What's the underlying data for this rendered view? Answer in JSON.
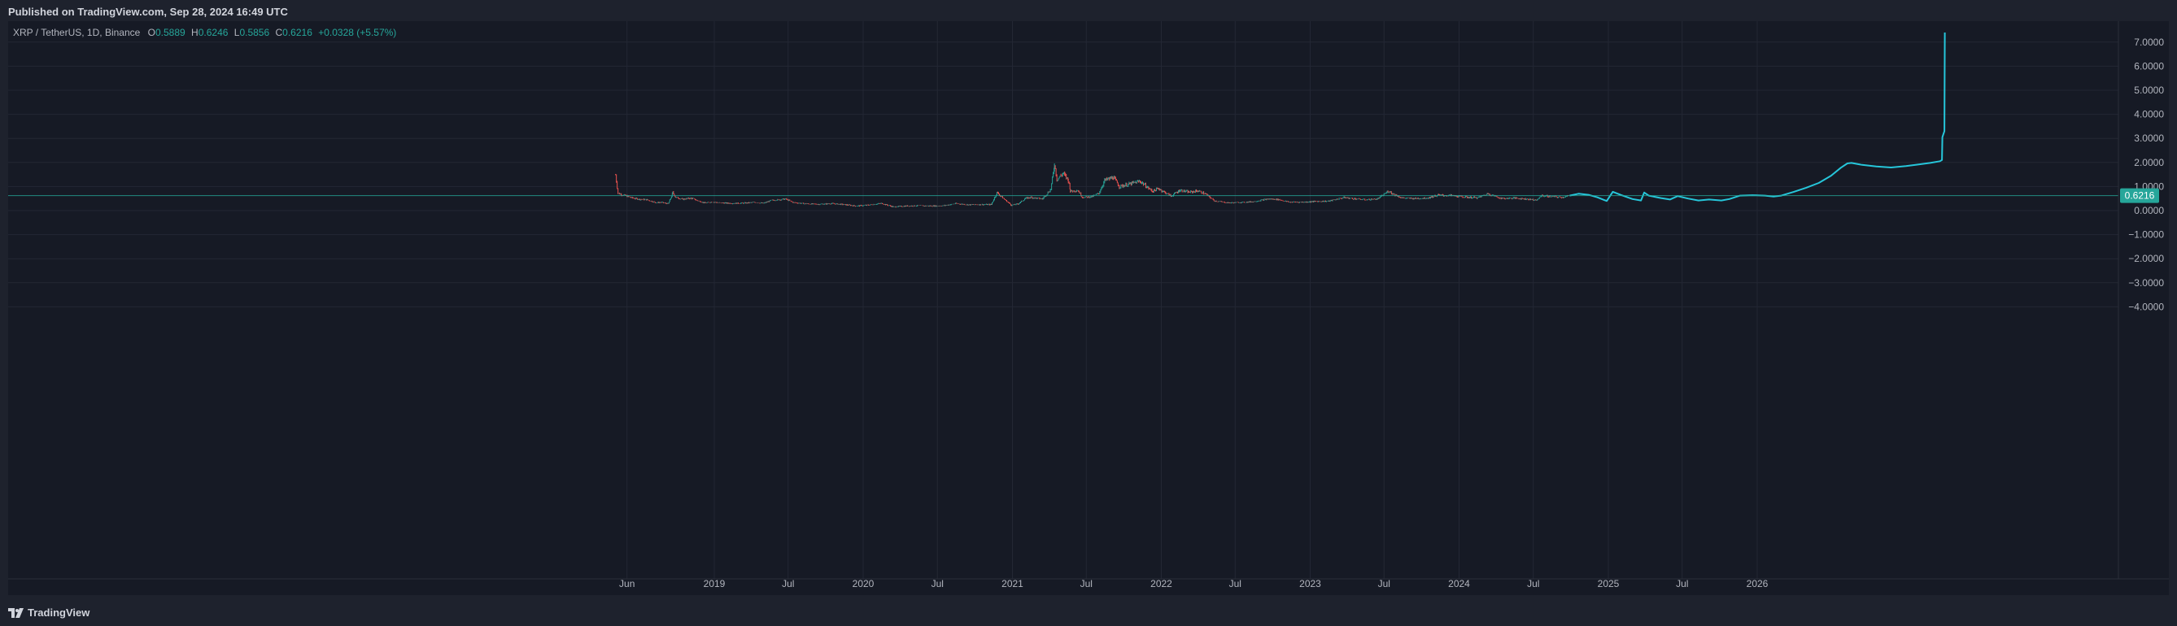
{
  "header": {
    "published": "Published on TradingView.com, Sep 28, 2024 16:49 UTC"
  },
  "legend": {
    "symbol": "XRP / TetherUS, 1D, Binance",
    "o_label": "O",
    "o_value": "0.5889",
    "h_label": "H",
    "h_value": "0.6246",
    "l_label": "L",
    "l_value": "0.5856",
    "c_label": "C",
    "c_value": "0.6216",
    "change": "+0.0328 (+5.57%)"
  },
  "footer": {
    "brand": "TradingView",
    "logo_icon": "tradingview-logo-icon"
  },
  "colors": {
    "background": "#161a25",
    "grid": "#232734",
    "axis_text": "#b2b5be",
    "up": "#26a69a",
    "down": "#ef5350",
    "projection": "#26c6da",
    "price_line": "#26a69a"
  },
  "chart_data": {
    "type": "line",
    "symbol": "XRP / TetherUS",
    "interval": "1D",
    "exchange": "Binance",
    "ylim": [
      -5.2,
      7.3
    ],
    "y_ticks": [
      7,
      6,
      5,
      4,
      3,
      2,
      1,
      0,
      -1,
      -2,
      -3,
      -4
    ],
    "y_tick_labels": [
      "7.0000",
      "6.0000",
      "5.0000",
      "4.0000",
      "3.0000",
      "2.0000",
      "1.0000",
      "0.0000",
      "−1.0000",
      "−2.0000",
      "−3.0000",
      "−4.0000"
    ],
    "x_tick_labels": [
      "Jun",
      "2019",
      "Jul",
      "2020",
      "Jul",
      "2021",
      "Jul",
      "2022",
      "Jul",
      "2023",
      "Jul",
      "2024",
      "Jul",
      "2025",
      "Jul",
      "2026"
    ],
    "x_tick_dates": [
      "2018-06-01",
      "2019-01-01",
      "2019-07-01",
      "2020-01-01",
      "2020-07-01",
      "2021-01-01",
      "2021-07-01",
      "2022-01-01",
      "2022-07-01",
      "2023-01-01",
      "2023-07-01",
      "2024-01-01",
      "2024-07-01",
      "2025-01-01",
      "2025-07-01",
      "2026-01-01"
    ],
    "last_price": 0.6216,
    "last_price_label": "0.6216",
    "grid": true,
    "series": [
      {
        "kind": "candles",
        "points": [
          [
            "2018-05-04",
            1.48
          ],
          [
            "2018-05-10",
            0.72
          ],
          [
            "2018-05-20",
            0.66
          ],
          [
            "2018-06-01",
            0.6
          ],
          [
            "2018-06-15",
            0.52
          ],
          [
            "2018-07-01",
            0.47
          ],
          [
            "2018-07-20",
            0.45
          ],
          [
            "2018-08-10",
            0.33
          ],
          [
            "2018-08-25",
            0.34
          ],
          [
            "2018-09-10",
            0.28
          ],
          [
            "2018-09-21",
            0.75
          ],
          [
            "2018-09-28",
            0.55
          ],
          [
            "2018-10-15",
            0.47
          ],
          [
            "2018-11-05",
            0.52
          ],
          [
            "2018-11-20",
            0.42
          ],
          [
            "2018-12-10",
            0.31
          ],
          [
            "2018-12-25",
            0.36
          ],
          [
            "2019-01-15",
            0.32
          ],
          [
            "2019-02-15",
            0.3
          ],
          [
            "2019-03-15",
            0.31
          ],
          [
            "2019-04-10",
            0.34
          ],
          [
            "2019-05-01",
            0.3
          ],
          [
            "2019-05-20",
            0.42
          ],
          [
            "2019-06-25",
            0.48
          ],
          [
            "2019-07-15",
            0.33
          ],
          [
            "2019-08-15",
            0.28
          ],
          [
            "2019-09-15",
            0.26
          ],
          [
            "2019-10-15",
            0.29
          ],
          [
            "2019-11-15",
            0.25
          ],
          [
            "2019-12-15",
            0.19
          ],
          [
            "2020-01-15",
            0.23
          ],
          [
            "2020-02-15",
            0.3
          ],
          [
            "2020-03-15",
            0.15
          ],
          [
            "2020-04-15",
            0.19
          ],
          [
            "2020-05-15",
            0.2
          ],
          [
            "2020-06-15",
            0.19
          ],
          [
            "2020-07-15",
            0.2
          ],
          [
            "2020-08-15",
            0.29
          ],
          [
            "2020-09-15",
            0.24
          ],
          [
            "2020-10-15",
            0.25
          ],
          [
            "2020-11-10",
            0.25
          ],
          [
            "2020-11-24",
            0.75
          ],
          [
            "2020-12-10",
            0.5
          ],
          [
            "2020-12-29",
            0.22
          ],
          [
            "2021-01-15",
            0.28
          ],
          [
            "2021-02-01",
            0.5
          ],
          [
            "2021-02-15",
            0.55
          ],
          [
            "2021-03-15",
            0.48
          ],
          [
            "2021-04-05",
            0.9
          ],
          [
            "2021-04-14",
            1.96
          ],
          [
            "2021-04-20",
            1.3
          ],
          [
            "2021-05-05",
            1.55
          ],
          [
            "2021-05-18",
            1.25
          ],
          [
            "2021-05-23",
            0.8
          ],
          [
            "2021-06-10",
            0.85
          ],
          [
            "2021-06-22",
            0.55
          ],
          [
            "2021-07-15",
            0.58
          ],
          [
            "2021-08-01",
            0.72
          ],
          [
            "2021-08-15",
            1.25
          ],
          [
            "2021-09-05",
            1.38
          ],
          [
            "2021-09-20",
            1.0
          ],
          [
            "2021-10-15",
            1.1
          ],
          [
            "2021-11-10",
            1.22
          ],
          [
            "2021-11-25",
            1.0
          ],
          [
            "2021-12-10",
            0.8
          ],
          [
            "2021-12-25",
            0.92
          ],
          [
            "2022-01-10",
            0.75
          ],
          [
            "2022-01-25",
            0.6
          ],
          [
            "2022-02-15",
            0.85
          ],
          [
            "2022-03-10",
            0.76
          ],
          [
            "2022-04-01",
            0.82
          ],
          [
            "2022-04-20",
            0.68
          ],
          [
            "2022-05-12",
            0.4
          ],
          [
            "2022-06-15",
            0.32
          ],
          [
            "2022-07-15",
            0.34
          ],
          [
            "2022-08-15",
            0.37
          ],
          [
            "2022-09-20",
            0.48
          ],
          [
            "2022-10-15",
            0.46
          ],
          [
            "2022-11-10",
            0.35
          ],
          [
            "2022-12-15",
            0.35
          ],
          [
            "2023-01-15",
            0.38
          ],
          [
            "2023-02-15",
            0.39
          ],
          [
            "2023-03-25",
            0.54
          ],
          [
            "2023-04-15",
            0.5
          ],
          [
            "2023-05-15",
            0.45
          ],
          [
            "2023-06-15",
            0.48
          ],
          [
            "2023-07-13",
            0.82
          ],
          [
            "2023-07-20",
            0.72
          ],
          [
            "2023-08-15",
            0.52
          ],
          [
            "2023-09-15",
            0.5
          ],
          [
            "2023-10-15",
            0.52
          ],
          [
            "2023-11-10",
            0.64
          ],
          [
            "2023-12-15",
            0.62
          ],
          [
            "2024-01-15",
            0.56
          ],
          [
            "2024-02-15",
            0.53
          ],
          [
            "2024-03-12",
            0.7
          ],
          [
            "2024-04-15",
            0.5
          ],
          [
            "2024-05-15",
            0.52
          ],
          [
            "2024-06-15",
            0.48
          ],
          [
            "2024-07-10",
            0.43
          ],
          [
            "2024-07-20",
            0.62
          ],
          [
            "2024-08-15",
            0.58
          ],
          [
            "2024-09-10",
            0.55
          ],
          [
            "2024-09-28",
            0.62
          ]
        ]
      },
      {
        "kind": "projection",
        "points": [
          [
            "2024-09-28",
            0.62
          ],
          [
            "2024-10-20",
            0.7
          ],
          [
            "2024-11-15",
            0.65
          ],
          [
            "2024-12-05",
            0.55
          ],
          [
            "2024-12-20",
            0.45
          ],
          [
            "2024-12-28",
            0.4
          ],
          [
            "2025-01-03",
            0.55
          ],
          [
            "2025-01-12",
            0.78
          ],
          [
            "2025-02-01",
            0.65
          ],
          [
            "2025-03-01",
            0.48
          ],
          [
            "2025-03-22",
            0.42
          ],
          [
            "2025-03-30",
            0.75
          ],
          [
            "2025-04-10",
            0.62
          ],
          [
            "2025-05-10",
            0.52
          ],
          [
            "2025-06-01",
            0.46
          ],
          [
            "2025-06-20",
            0.6
          ],
          [
            "2025-07-15",
            0.5
          ],
          [
            "2025-08-10",
            0.42
          ],
          [
            "2025-09-05",
            0.46
          ],
          [
            "2025-10-05",
            0.42
          ],
          [
            "2025-10-25",
            0.48
          ],
          [
            "2025-11-20",
            0.62
          ],
          [
            "2025-12-20",
            0.64
          ],
          [
            "2026-01-20",
            0.62
          ],
          [
            "2026-02-10",
            0.58
          ],
          [
            "2026-03-01",
            0.62
          ],
          [
            "2026-04-01",
            0.78
          ],
          [
            "2026-05-01",
            0.95
          ],
          [
            "2026-06-01",
            1.15
          ],
          [
            "2026-07-01",
            1.45
          ],
          [
            "2026-07-25",
            1.78
          ],
          [
            "2026-08-10",
            1.96
          ],
          [
            "2026-08-20",
            1.98
          ],
          [
            "2026-09-15",
            1.9
          ],
          [
            "2026-10-20",
            1.83
          ],
          [
            "2026-11-25",
            1.79
          ],
          [
            "2027-01-01",
            1.85
          ],
          [
            "2027-02-01",
            1.92
          ],
          [
            "2027-03-01",
            1.98
          ],
          [
            "2027-03-25",
            2.05
          ],
          [
            "2027-03-30",
            2.1
          ],
          [
            "2027-03-31",
            3.05
          ],
          [
            "2027-04-05",
            3.3
          ],
          [
            "2027-04-06",
            7.4
          ]
        ]
      }
    ]
  }
}
